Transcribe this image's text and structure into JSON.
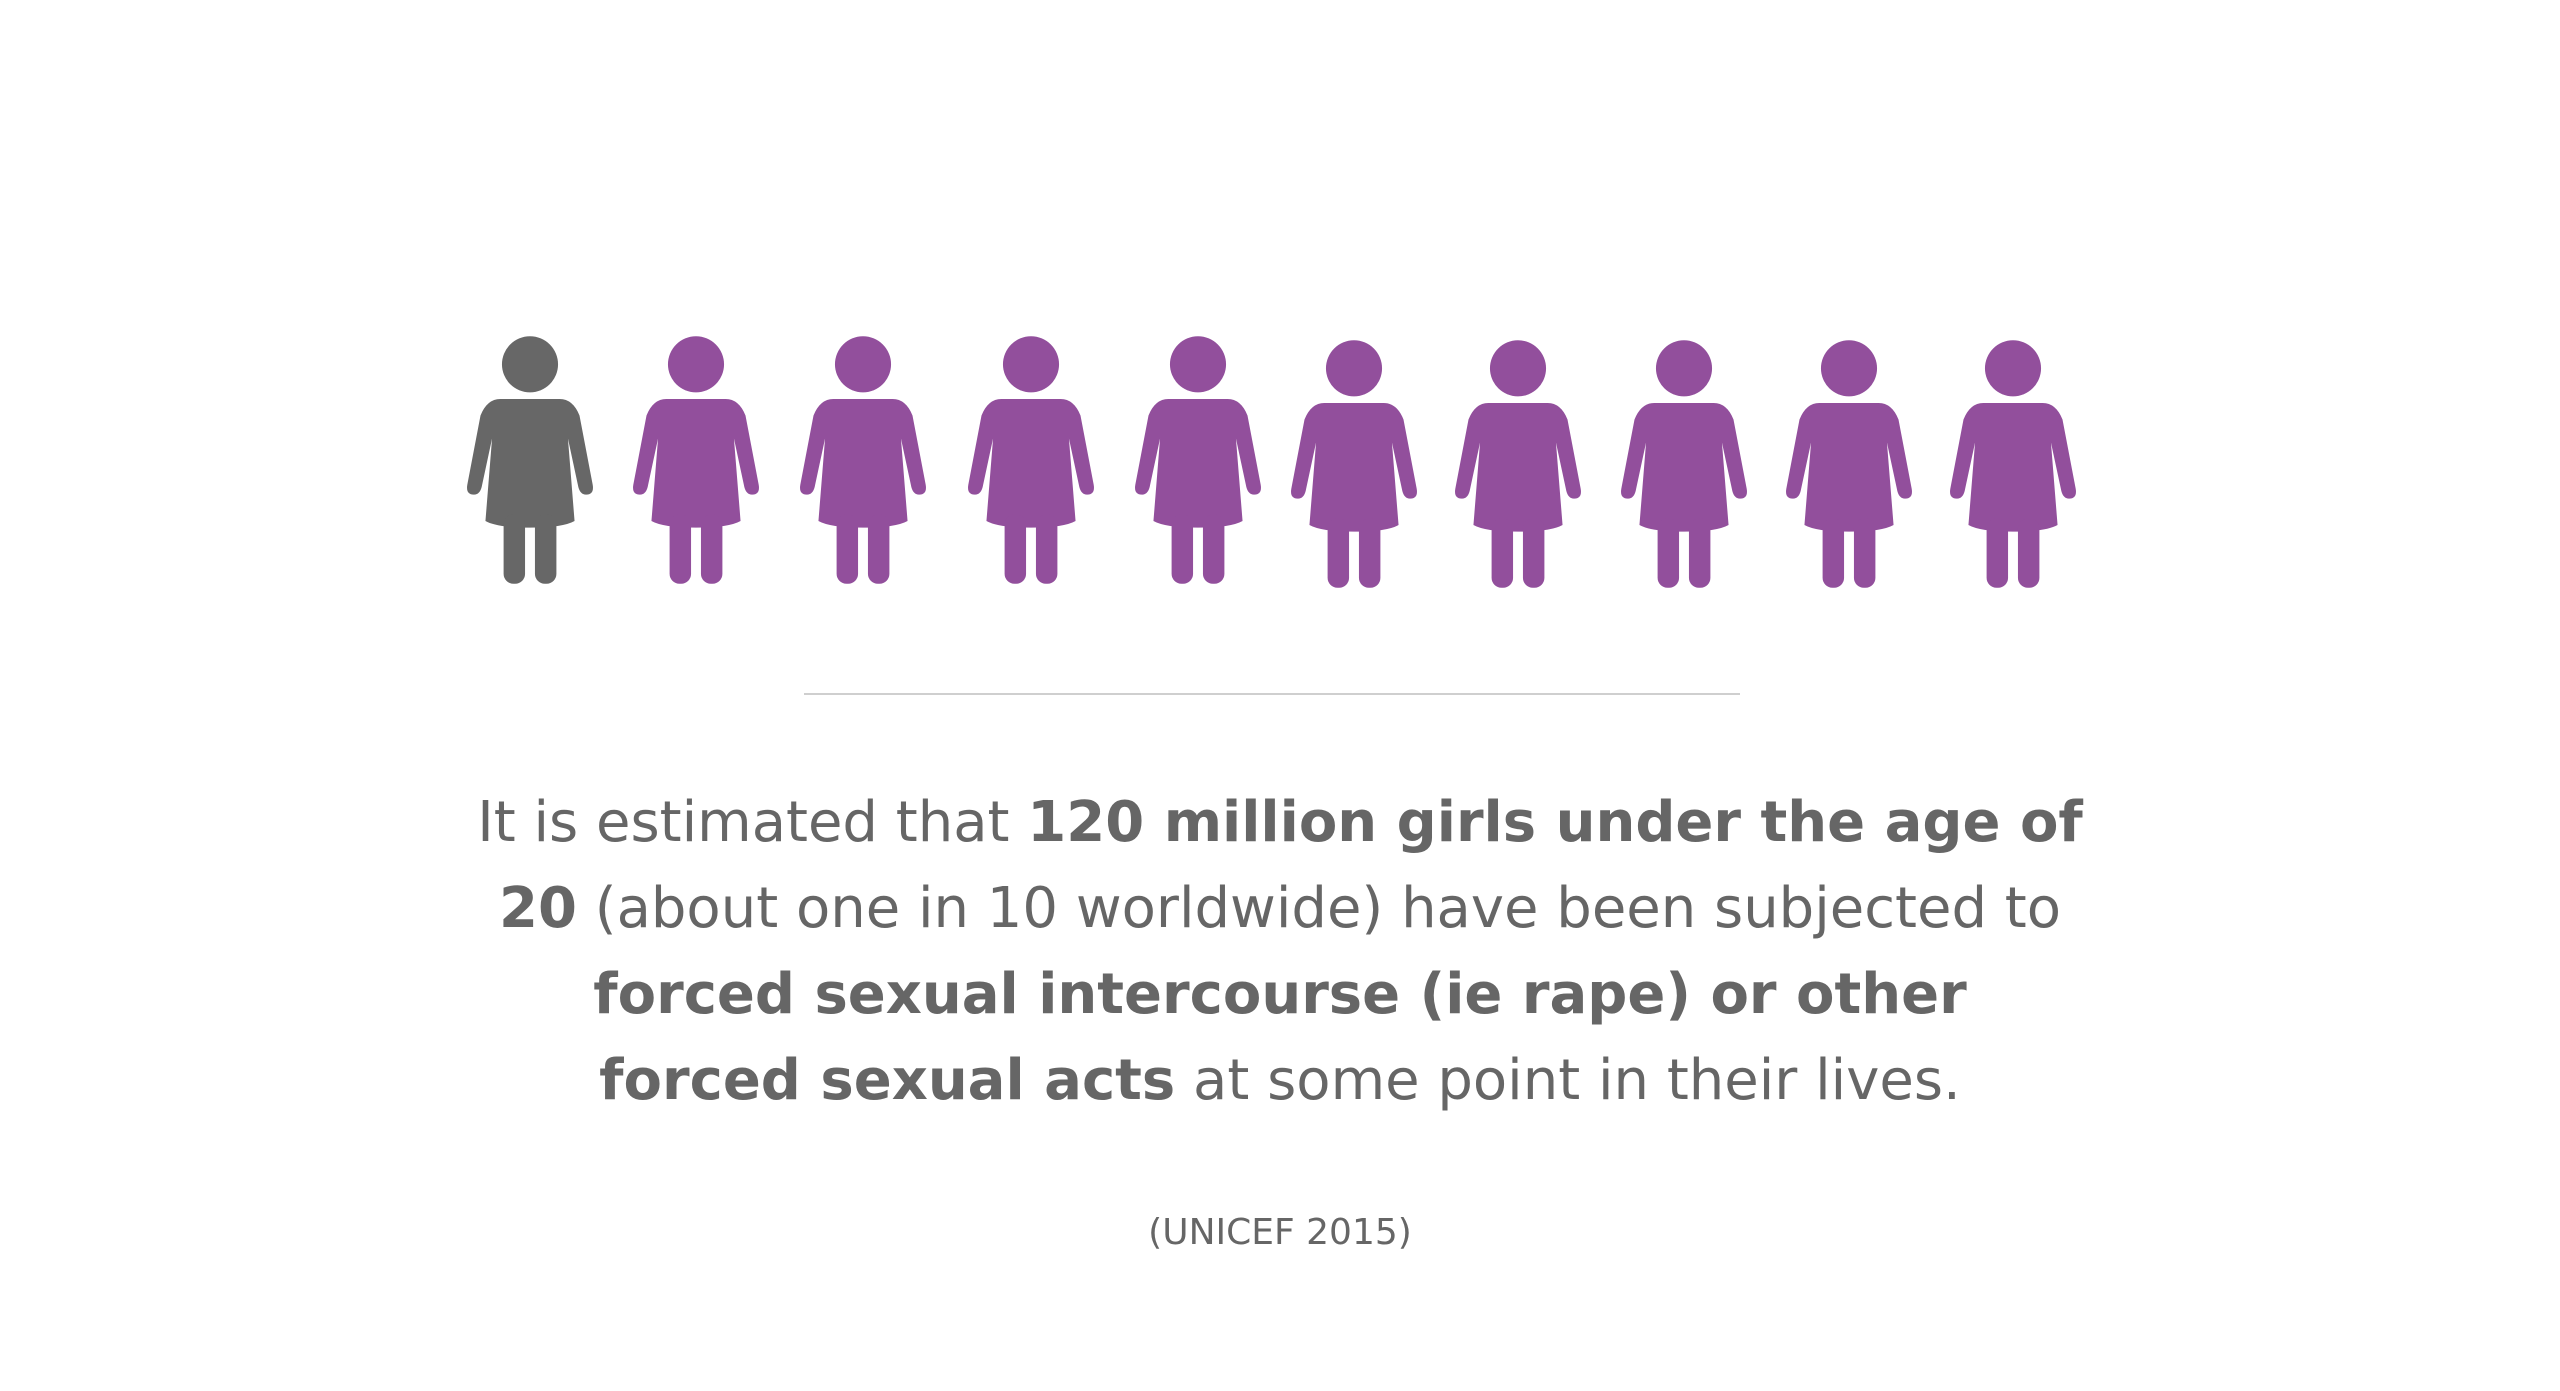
{
  "statement": {
    "lines": [
      [
        {
          "text": "It is estimated that ",
          "bold": false
        },
        {
          "text": "120 million girls under the age of",
          "bold": true
        }
      ],
      [
        {
          "text": "20",
          "bold": true
        },
        {
          "text": " (about one in 10 worldwide) have been subjected to",
          "bold": false
        }
      ],
      [
        {
          "text": "forced sexual intercourse (ie rape) or other",
          "bold": true
        }
      ],
      [
        {
          "text": "forced sexual acts",
          "bold": true
        },
        {
          "text": " at some point in their lives.",
          "bold": false
        }
      ]
    ]
  },
  "source": "(UNICEF 2015)"
}
